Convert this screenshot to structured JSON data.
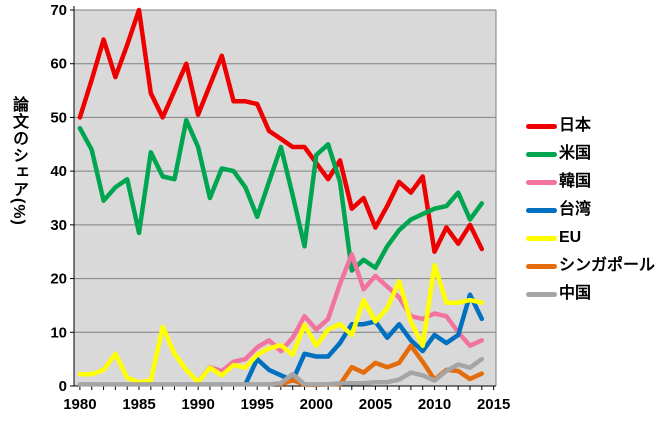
{
  "chart_data": {
    "type": "line",
    "title": "",
    "xlabel": "",
    "ylabel": "論文のシェア(%)",
    "x_ticks": [
      1980,
      1985,
      1990,
      1995,
      2000,
      2005,
      2010,
      2015
    ],
    "y_ticks": [
      0,
      10,
      20,
      30,
      40,
      50,
      60,
      70
    ],
    "xlim": [
      1979.5,
      2015.2
    ],
    "ylim": [
      0,
      70
    ],
    "grid": "horizontal",
    "legend_position": "right",
    "colors": {
      "plot_bg": "#d9d9d9",
      "grid": "#808080",
      "axis": "#000000",
      "text": "#000000"
    },
    "x": [
      1980,
      1981,
      1982,
      1983,
      1984,
      1985,
      1986,
      1987,
      1988,
      1989,
      1990,
      1991,
      1992,
      1993,
      1994,
      1995,
      1996,
      1997,
      1998,
      1999,
      2000,
      2001,
      2002,
      2003,
      2004,
      2005,
      2006,
      2007,
      2008,
      2009,
      2010,
      2011,
      2012,
      2013,
      2014
    ],
    "series": [
      {
        "key": "japan",
        "name": "日本",
        "color": "#ee0000",
        "values": [
          50,
          57,
          64.5,
          57.5,
          63.5,
          70,
          54.5,
          50,
          55,
          60,
          50.5,
          56,
          61.5,
          53,
          53,
          52.5,
          47.5,
          46,
          44.5,
          44.5,
          41.5,
          38.5,
          42,
          33,
          35,
          29.5,
          33.5,
          38,
          36,
          39,
          25,
          29.5,
          26.5,
          30,
          25.5
        ]
      },
      {
        "key": "usa",
        "name": "米国",
        "color": "#00a550",
        "values": [
          48,
          44,
          34.5,
          37,
          38.5,
          28.5,
          43.5,
          39,
          38.5,
          49.5,
          44.5,
          35,
          40.5,
          40,
          37,
          31.5,
          38,
          44.5,
          35.5,
          26,
          43,
          45,
          38,
          21.5,
          23.5,
          22,
          26,
          29,
          31,
          32,
          33,
          33.5,
          36,
          31,
          34
        ]
      },
      {
        "key": "korea",
        "name": "韓国",
        "color": "#f2739f",
        "values": [
          null,
          null,
          null,
          null,
          null,
          null,
          null,
          null,
          null,
          null,
          0.7,
          3.5,
          2.8,
          4.5,
          5,
          7.2,
          8.5,
          6.5,
          9,
          13,
          10.5,
          12.5,
          19,
          24.5,
          18,
          20.5,
          18.5,
          16.5,
          13,
          12.5,
          13.5,
          13,
          10,
          7.5,
          8.5
        ]
      },
      {
        "key": "taiwan",
        "name": "台湾",
        "color": "#0070c0",
        "values": [
          null,
          null,
          null,
          null,
          null,
          null,
          null,
          null,
          null,
          null,
          null,
          null,
          null,
          null,
          0.3,
          5,
          3,
          2,
          1,
          6,
          5.5,
          5.5,
          8,
          11.5,
          11.5,
          12,
          9,
          11.5,
          8.5,
          6.5,
          9.5,
          8,
          9.5,
          17,
          12.5
        ]
      },
      {
        "key": "eu",
        "name": "EU",
        "color": "#ffff00",
        "values": [
          2.2,
          2.2,
          3,
          6,
          1.5,
          0.7,
          1,
          11,
          6,
          3,
          0.7,
          3.4,
          2,
          3.9,
          3.4,
          5.8,
          7,
          7.6,
          5.8,
          11.4,
          7.5,
          10.5,
          11.5,
          9.5,
          16,
          12,
          14.5,
          19.5,
          12,
          7.5,
          22.5,
          15.5,
          15.5,
          16,
          15.5
        ]
      },
      {
        "key": "singapore",
        "name": "シンガポール",
        "color": "#e46c0a",
        "values": [
          null,
          null,
          null,
          null,
          null,
          null,
          null,
          null,
          null,
          null,
          null,
          null,
          null,
          null,
          null,
          null,
          null,
          0.3,
          1.1,
          0.2,
          0.2,
          0.3,
          0.3,
          3.5,
          2.5,
          4.3,
          3.5,
          4.3,
          7.5,
          4.5,
          1.2,
          3,
          2.8,
          1.3,
          2.3
        ]
      },
      {
        "key": "china",
        "name": "中国",
        "color": "#a5a5a5",
        "values": [
          0.3,
          0.3,
          0.3,
          0.3,
          0.3,
          0.3,
          0.3,
          0.3,
          0.3,
          0.3,
          0.3,
          0.3,
          0.3,
          0.3,
          0.3,
          0.3,
          0.3,
          0.5,
          2.2,
          0.3,
          0.3,
          0.3,
          0.5,
          0.5,
          0.5,
          0.7,
          0.7,
          1.2,
          2.5,
          2,
          1,
          2.8,
          4,
          3.4,
          5
        ]
      }
    ]
  }
}
